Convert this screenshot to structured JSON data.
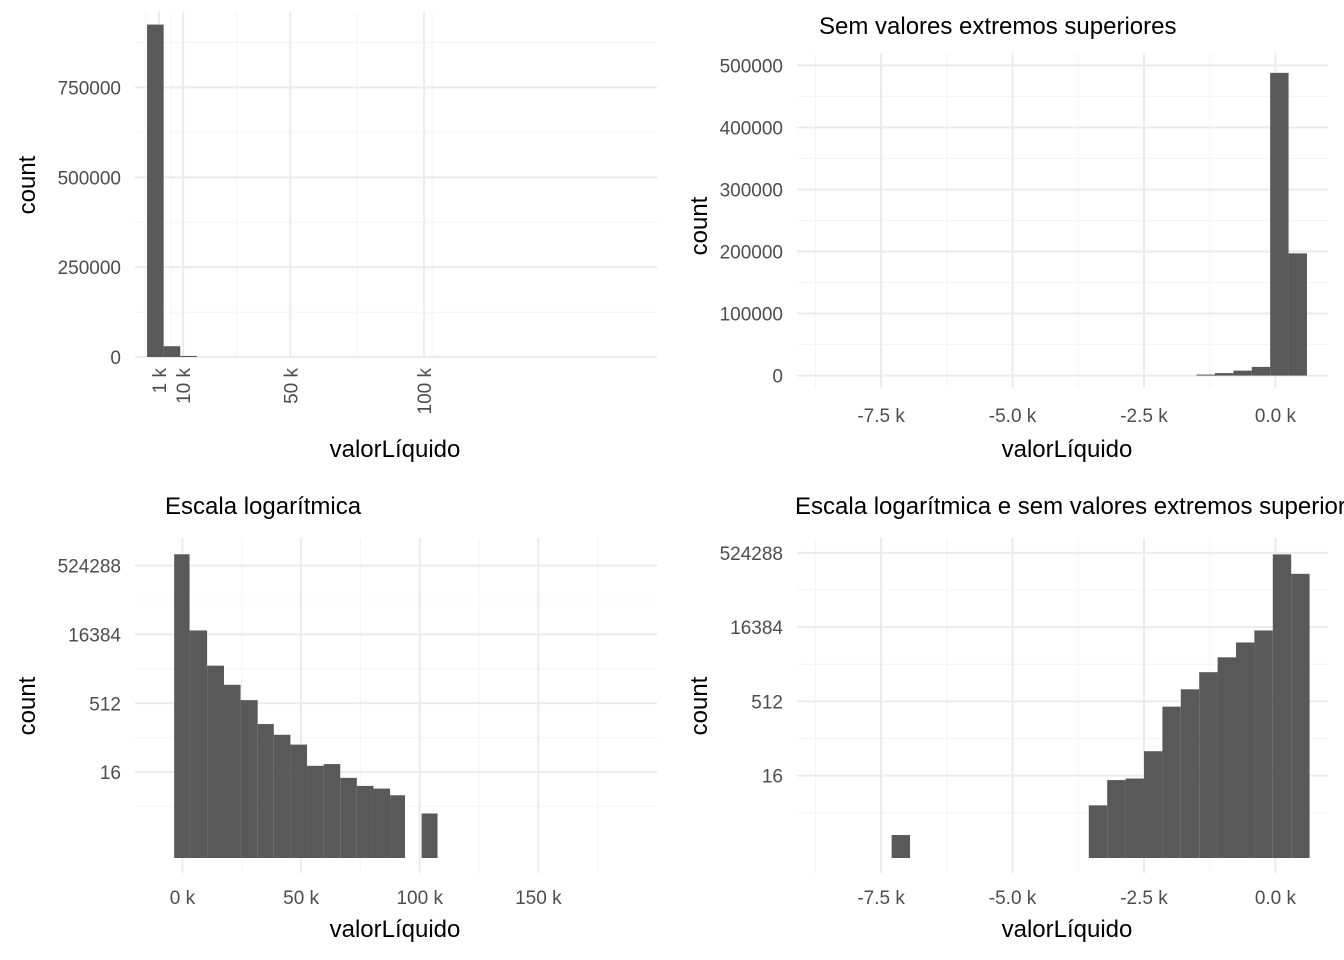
{
  "colors": {
    "bar": "#595959",
    "grid_major": "#ebebeb",
    "grid_minor": "#f4f4f4",
    "text": "#000000",
    "tick_text": "#4d4d4d"
  },
  "chart_data": [
    {
      "type": "bar",
      "title": "",
      "xlabel": "valorLíquido",
      "ylabel": "count",
      "x_scale": "linear",
      "y_scale": "linear",
      "xlim": [
        -8000,
        187000
      ],
      "ylim": [
        0,
        960000
      ],
      "x_ticks": [
        {
          "value": 1000,
          "label": "1 k"
        },
        {
          "value": 10000,
          "label": "10 k"
        },
        {
          "value": 50000,
          "label": "50 k"
        },
        {
          "value": 100000,
          "label": "100 k"
        }
      ],
      "x_tick_rotation": -90,
      "x_minor_grid": [
        -4000,
        5500,
        30000,
        75000,
        103000
      ],
      "y_ticks": [
        {
          "value": 0,
          "label": "0"
        },
        {
          "value": 250000,
          "label": "250000"
        },
        {
          "value": 500000,
          "label": "500000"
        },
        {
          "value": 750000,
          "label": "750000"
        }
      ],
      "y_minor_grid": [
        125000,
        375000,
        625000,
        875000
      ],
      "bins": [
        {
          "x0": -3500,
          "x1": 2700,
          "count": 925000
        },
        {
          "x0": 2700,
          "x1": 8900,
          "count": 30000
        },
        {
          "x0": 8900,
          "x1": 15100,
          "count": 3000
        }
      ],
      "grid": true,
      "legend": "none"
    },
    {
      "type": "bar",
      "title": "Sem valores extremos superiores",
      "xlabel": "valorLíquido",
      "ylabel": "count",
      "x_scale": "linear",
      "y_scale": "linear",
      "xlim": [
        -9100,
        1000
      ],
      "ylim": [
        -20000,
        520000
      ],
      "x_ticks": [
        {
          "value": -7500,
          "label": "-7.5 k"
        },
        {
          "value": -5000,
          "label": "-5.0 k"
        },
        {
          "value": -2500,
          "label": "-2.5 k"
        },
        {
          "value": 0,
          "label": "0.0 k"
        }
      ],
      "x_minor_grid": [
        -8750,
        -6250,
        -3750,
        -1250
      ],
      "y_ticks": [
        {
          "value": 0,
          "label": "0"
        },
        {
          "value": 100000,
          "label": "100000"
        },
        {
          "value": 200000,
          "label": "200000"
        },
        {
          "value": 300000,
          "label": "300000"
        },
        {
          "value": 400000,
          "label": "400000"
        },
        {
          "value": 500000,
          "label": "500000"
        }
      ],
      "y_minor_grid": [
        50000,
        150000,
        250000,
        350000,
        450000
      ],
      "bins": [
        {
          "x0": -1500,
          "x1": -1150,
          "count": 1000
        },
        {
          "x0": -1150,
          "x1": -800,
          "count": 4000
        },
        {
          "x0": -800,
          "x1": -450,
          "count": 8000
        },
        {
          "x0": -450,
          "x1": -100,
          "count": 14000
        },
        {
          "x0": -100,
          "x1": 250,
          "count": 488000
        },
        {
          "x0": 250,
          "x1": 600,
          "count": 197000
        }
      ],
      "grid": true,
      "legend": "none"
    },
    {
      "type": "bar",
      "title": "Escala logarítmica",
      "xlabel": "valorLíquido",
      "ylabel": "count",
      "x_scale": "linear",
      "y_scale": "log2",
      "xlim": [
        -20000,
        200000
      ],
      "ylim": [
        0.1,
        2097152
      ],
      "x_ticks": [
        {
          "value": 0,
          "label": "0 k"
        },
        {
          "value": 50000,
          "label": "50 k"
        },
        {
          "value": 100000,
          "label": "100 k"
        },
        {
          "value": 150000,
          "label": "150 k"
        }
      ],
      "x_minor_grid": [
        25000,
        75000,
        125000,
        175000
      ],
      "y_ticks": [
        {
          "value": 16,
          "label": "16"
        },
        {
          "value": 512,
          "label": "512"
        },
        {
          "value": 16384,
          "label": "16384"
        },
        {
          "value": 524288,
          "label": "524288"
        }
      ],
      "y_minor_grid": [
        2.83,
        90.5,
        2896,
        92682
      ],
      "bins": [
        {
          "x0": -3500,
          "x1": 3000,
          "count": 925000
        },
        {
          "x0": 3000,
          "x1": 10400,
          "count": 20000
        },
        {
          "x0": 10400,
          "x1": 17500,
          "count": 3400
        },
        {
          "x0": 17500,
          "x1": 24500,
          "count": 1300
        },
        {
          "x0": 24500,
          "x1": 31700,
          "count": 600
        },
        {
          "x0": 31700,
          "x1": 38500,
          "count": 180
        },
        {
          "x0": 38500,
          "x1": 45500,
          "count": 105
        },
        {
          "x0": 45500,
          "x1": 52500,
          "count": 64
        },
        {
          "x0": 52500,
          "x1": 59500,
          "count": 22
        },
        {
          "x0": 59500,
          "x1": 66500,
          "count": 24
        },
        {
          "x0": 66500,
          "x1": 73500,
          "count": 12
        },
        {
          "x0": 73500,
          "x1": 80500,
          "count": 8
        },
        {
          "x0": 80500,
          "x1": 87500,
          "count": 7
        },
        {
          "x0": 87500,
          "x1": 93800,
          "count": 5
        },
        {
          "x0": 100800,
          "x1": 107500,
          "count": 2
        }
      ],
      "grid": true,
      "legend": "none"
    },
    {
      "type": "bar",
      "title": "Escala logarítmica e sem valores extremos superiores",
      "xlabel": "valorLíquido",
      "ylabel": "count",
      "x_scale": "linear",
      "y_scale": "log2",
      "xlim": [
        -9100,
        1000
      ],
      "ylim": [
        0.17,
        1048576
      ],
      "x_ticks": [
        {
          "value": -7500,
          "label": "-7.5 k"
        },
        {
          "value": -5000,
          "label": "-5.0 k"
        },
        {
          "value": -2500,
          "label": "-2.5 k"
        },
        {
          "value": 0,
          "label": "0.0 k"
        }
      ],
      "x_minor_grid": [
        -8750,
        -6250,
        -3750,
        -1250
      ],
      "y_ticks": [
        {
          "value": 16,
          "label": "16"
        },
        {
          "value": 512,
          "label": "512"
        },
        {
          "value": 16384,
          "label": "16384"
        },
        {
          "value": 524288,
          "label": "524288"
        }
      ],
      "y_minor_grid": [
        2.83,
        90.5,
        2896,
        92682
      ],
      "bins": [
        {
          "x0": -7300,
          "x1": -6950,
          "count": 1
        },
        {
          "x0": -3550,
          "x1": -3200,
          "count": 4
        },
        {
          "x0": -3200,
          "x1": -2850,
          "count": 13
        },
        {
          "x0": -2850,
          "x1": -2500,
          "count": 14
        },
        {
          "x0": -2500,
          "x1": -2150,
          "count": 50
        },
        {
          "x0": -2150,
          "x1": -1800,
          "count": 400
        },
        {
          "x0": -1800,
          "x1": -1450,
          "count": 900
        },
        {
          "x0": -1450,
          "x1": -1100,
          "count": 2000
        },
        {
          "x0": -1100,
          "x1": -750,
          "count": 4000
        },
        {
          "x0": -750,
          "x1": -400,
          "count": 8000
        },
        {
          "x0": -400,
          "x1": -50,
          "count": 14000
        },
        {
          "x0": -50,
          "x1": 300,
          "count": 488000
        },
        {
          "x0": 300,
          "x1": 650,
          "count": 197000
        }
      ],
      "grid": true,
      "legend": "none"
    }
  ]
}
